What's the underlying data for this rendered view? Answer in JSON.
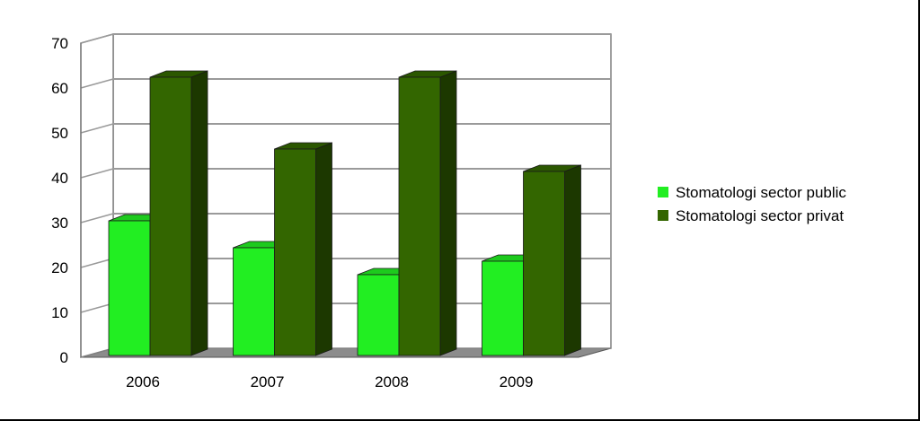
{
  "chart_data": {
    "type": "bar",
    "categories": [
      "2006",
      "2007",
      "2008",
      "2009"
    ],
    "series": [
      {
        "name": "Stomatologi sector public",
        "values": [
          30,
          24,
          18,
          21
        ],
        "color": "#22ee22"
      },
      {
        "name": "Stomatologi sector privat",
        "values": [
          62,
          46,
          62,
          41
        ],
        "color": "#336600"
      }
    ],
    "y_ticks": [
      "0",
      "10",
      "20",
      "30",
      "40",
      "50",
      "60",
      "70"
    ],
    "ylim": [
      0,
      70
    ],
    "grid": true,
    "legend_position": "right",
    "title": "",
    "xlabel": "",
    "ylabel": ""
  }
}
